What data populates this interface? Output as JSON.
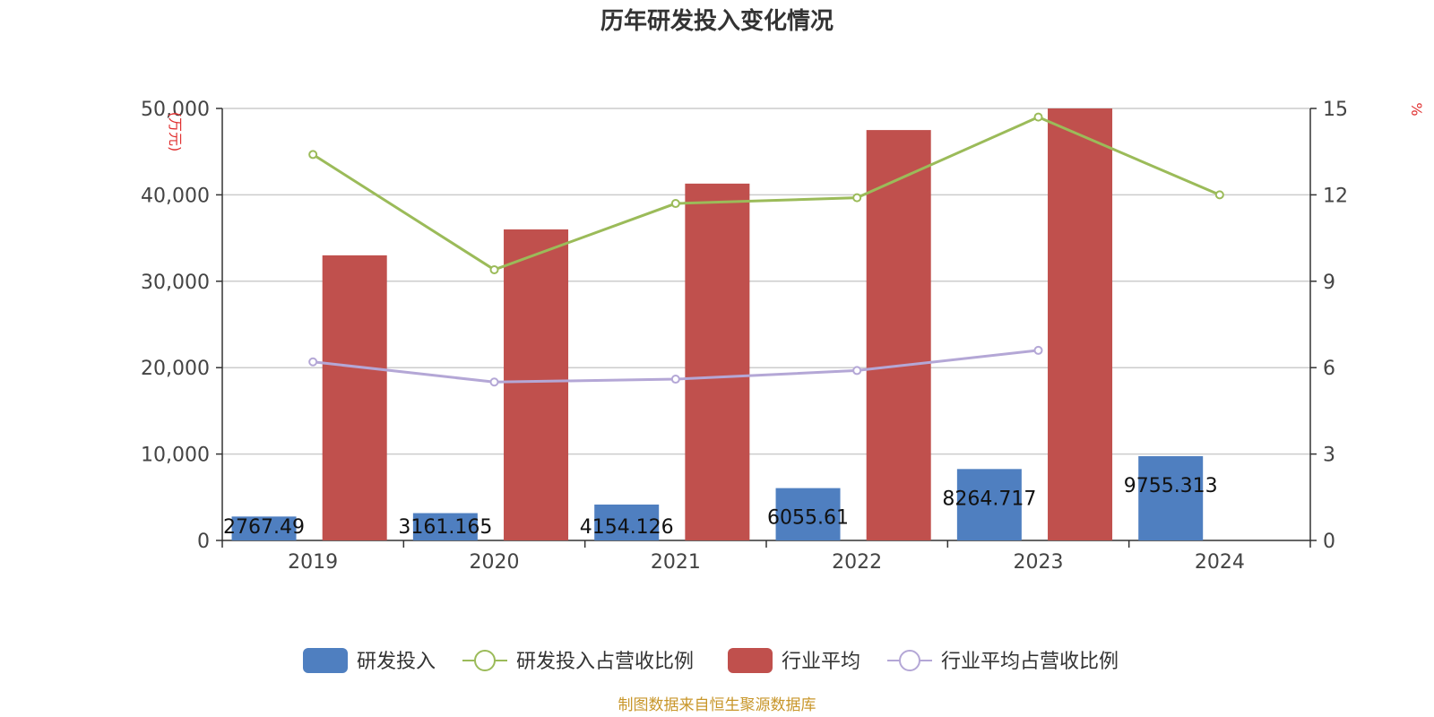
{
  "chart_data": {
    "type": "bar",
    "title": "历年研发投入变化情况",
    "categories": [
      "2019",
      "2020",
      "2021",
      "2022",
      "2023",
      "2024"
    ],
    "y_left": {
      "unit_label": "(万元)",
      "ylim": [
        0,
        50000
      ],
      "ticks": [
        "0",
        "10,000",
        "20,000",
        "30,000",
        "40,000",
        "50,000"
      ]
    },
    "y_right": {
      "unit_label": "%",
      "ylim": [
        0,
        15
      ],
      "ticks": [
        "0",
        "3",
        "6",
        "9",
        "12",
        "15"
      ]
    },
    "series": [
      {
        "name": "研发投入",
        "kind": "bar",
        "axis": "left",
        "color": "#4f7fc0",
        "values": [
          2767.49,
          3161.165,
          4154.126,
          6055.61,
          8264.717,
          9755.313
        ],
        "labels": [
          "2767.49",
          "3161.165",
          "4154.126",
          "6055.61",
          "8264.717",
          "9755.313"
        ]
      },
      {
        "name": "研发投入占营收比例",
        "kind": "line",
        "axis": "right",
        "color": "#9bbb59",
        "values": [
          13.4,
          9.4,
          11.7,
          11.9,
          14.7,
          12.0
        ]
      },
      {
        "name": "行业平均",
        "kind": "bar",
        "axis": "left",
        "color": "#c0504d",
        "values": [
          33000,
          36000,
          41300,
          47500,
          50000,
          null
        ]
      },
      {
        "name": "行业平均占营收比例",
        "kind": "line",
        "axis": "right",
        "color": "#b4a7d6",
        "values": [
          6.2,
          5.5,
          5.6,
          5.9,
          6.6,
          null
        ]
      }
    ],
    "grid": true,
    "legend_position": "bottom"
  },
  "source": "制图数据来自恒生聚源数据库"
}
